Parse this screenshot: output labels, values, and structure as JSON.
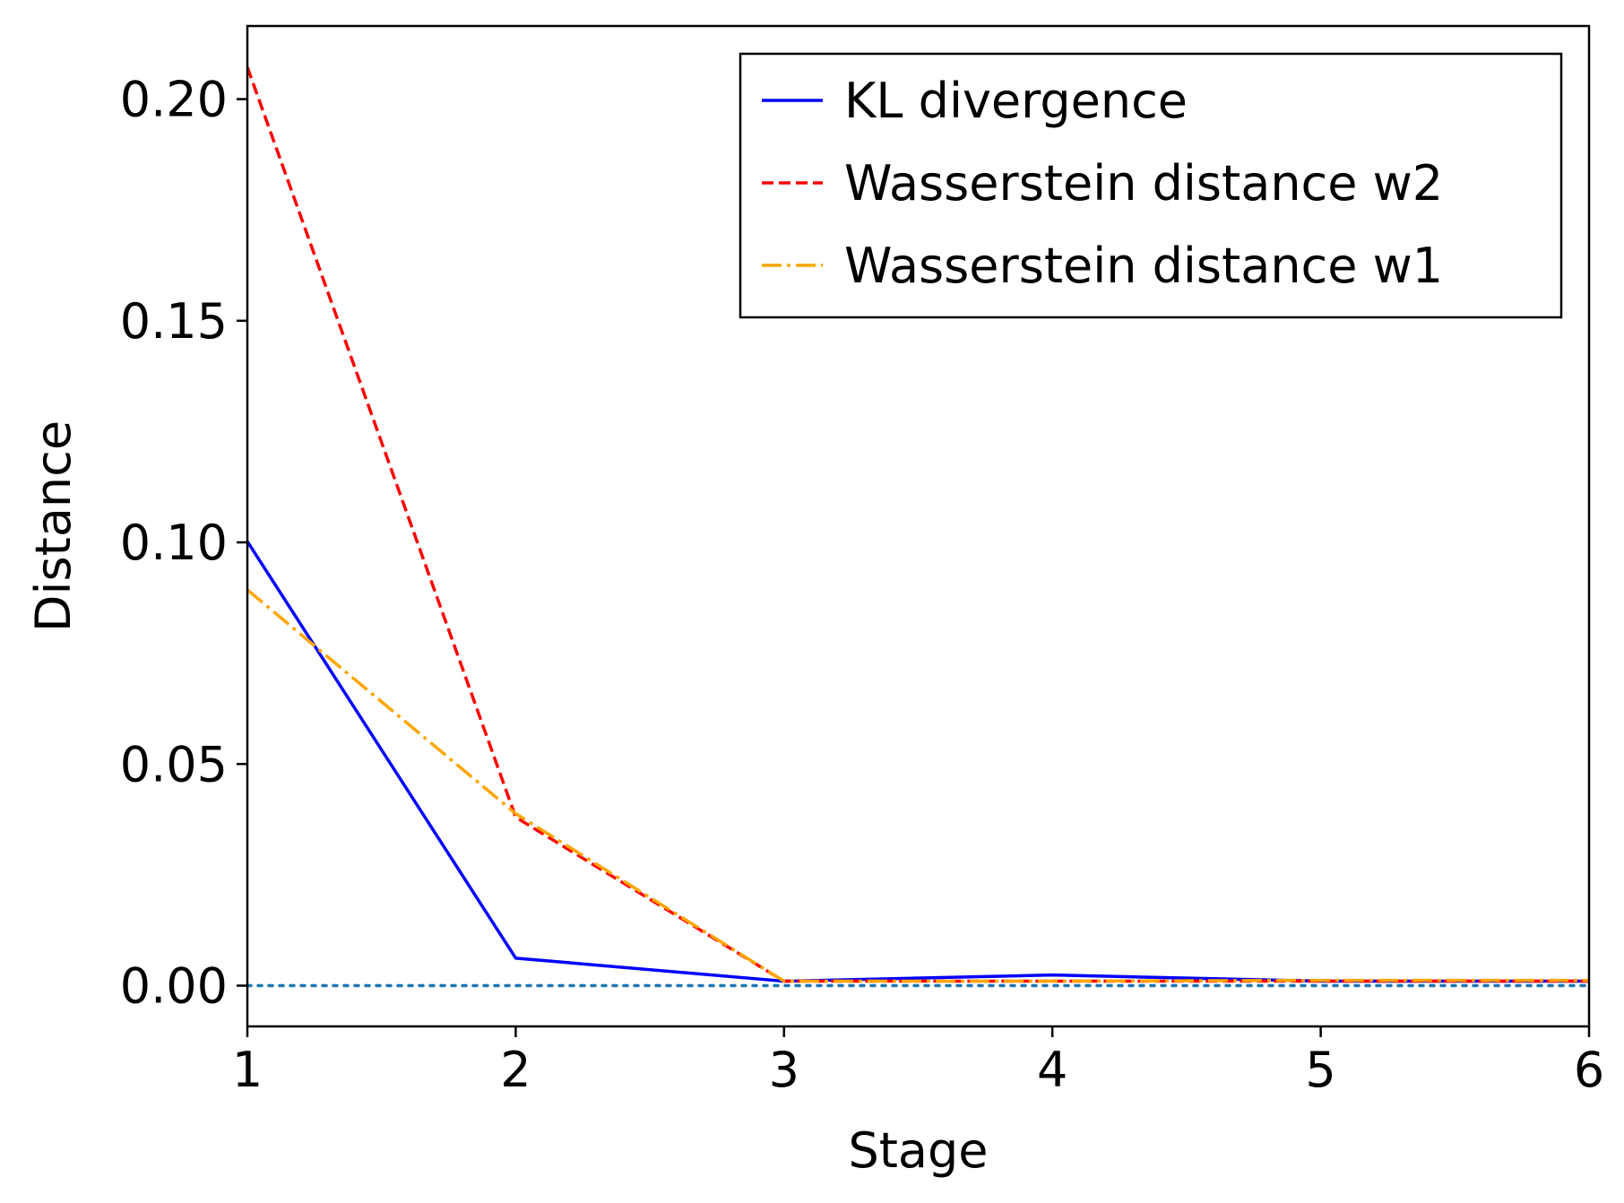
{
  "chart_data": {
    "type": "line",
    "title": "",
    "xlabel": "Stage",
    "ylabel": "Distance",
    "x": [
      1,
      2,
      3,
      4,
      5,
      6
    ],
    "xlim": [
      1,
      6
    ],
    "ylim": [
      -0.0092,
      0.2165
    ],
    "xticks": [
      1,
      2,
      3,
      4,
      5,
      6
    ],
    "xtick_labels": [
      "1",
      "2",
      "3",
      "4",
      "5",
      "6"
    ],
    "yticks": [
      0.0,
      0.05,
      0.1,
      0.15,
      0.2
    ],
    "ytick_labels": [
      "0.00",
      "0.05",
      "0.10",
      "0.15",
      "0.20"
    ],
    "grid": false,
    "legend_position": "top-right",
    "series": [
      {
        "name": "KL divergence",
        "style": "solid",
        "color": "#0000ff",
        "values": [
          0.1002,
          0.0062,
          0.001,
          0.0024,
          0.001,
          0.001
        ]
      },
      {
        "name": "Wasserstein distance w2",
        "style": "dashed",
        "color": "#ff0000",
        "values": [
          0.2072,
          0.038,
          0.001,
          0.001,
          0.001,
          0.001
        ]
      },
      {
        "name": "Wasserstein distance w1",
        "style": "dashdot",
        "color": "#ffa500",
        "values": [
          0.0893,
          0.0388,
          0.001,
          0.001,
          0.0012,
          0.0012
        ]
      }
    ],
    "reference_line": {
      "y": 0.0,
      "style": "dotted",
      "color": "#1f77b4"
    }
  }
}
